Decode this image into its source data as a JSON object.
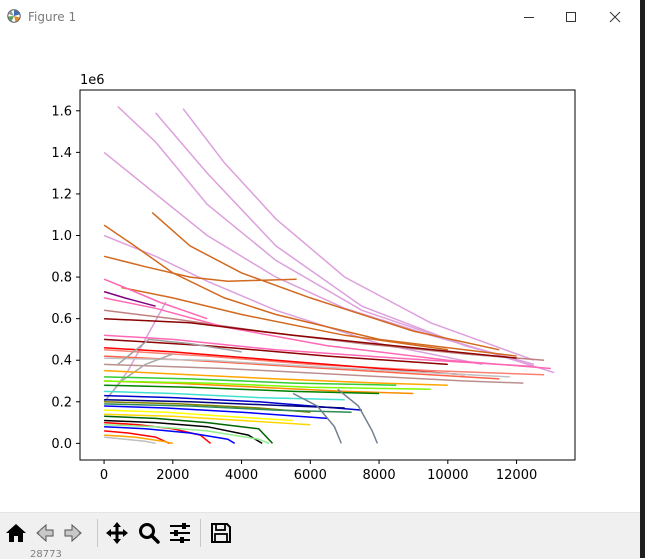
{
  "window": {
    "title": "Figure 1",
    "icons": {
      "app": "matplotlib-icon",
      "minimize": "minimize-icon",
      "maximize": "maximize-icon",
      "close": "close-icon"
    }
  },
  "toolbar": {
    "buttons": [
      {
        "name": "home",
        "icon": "home-icon"
      },
      {
        "name": "back",
        "icon": "back-arrow-icon"
      },
      {
        "name": "forward",
        "icon": "forward-arrow-icon"
      },
      {
        "name": "pan",
        "icon": "move-icon"
      },
      {
        "name": "zoom",
        "icon": "zoom-icon"
      },
      {
        "name": "configure",
        "icon": "sliders-icon"
      },
      {
        "name": "save",
        "icon": "save-icon"
      }
    ],
    "status_text": "28773"
  },
  "chart_data": {
    "type": "line",
    "title": "",
    "xlabel": "",
    "ylabel": "",
    "offset_text": "1e6",
    "xlim": [
      -700,
      13700
    ],
    "ylim": [
      -80000,
      1700000
    ],
    "xticks": [
      0,
      2000,
      4000,
      6000,
      8000,
      10000,
      12000
    ],
    "xtick_labels": [
      "0",
      "2000",
      "4000",
      "6000",
      "8000",
      "10000",
      "12000"
    ],
    "yticks": [
      0,
      200000,
      400000,
      600000,
      800000,
      1000000,
      1200000,
      1400000,
      1600000
    ],
    "ytick_labels": [
      "0.0",
      "0.2",
      "0.4",
      "0.6",
      "0.8",
      "1.0",
      "1.2",
      "1.4",
      "1.6"
    ],
    "grid": false,
    "legend": "none",
    "series": [
      {
        "color": "#dda0dd",
        "values": [
          [
            0,
            1400000
          ],
          [
            1500,
            1200000
          ],
          [
            3000,
            1000000
          ],
          [
            5000,
            800000
          ],
          [
            7000,
            650000
          ],
          [
            9500,
            520000
          ],
          [
            12500,
            380000
          ]
        ]
      },
      {
        "color": "#dda0dd",
        "values": [
          [
            400,
            1620000
          ],
          [
            1500,
            1450000
          ],
          [
            3000,
            1150000
          ],
          [
            5000,
            880000
          ],
          [
            7500,
            640000
          ],
          [
            10000,
            500000
          ],
          [
            13100,
            340000
          ]
        ]
      },
      {
        "color": "#dda0dd",
        "values": [
          [
            2300,
            1610000
          ],
          [
            3500,
            1350000
          ],
          [
            5000,
            1080000
          ],
          [
            7000,
            800000
          ],
          [
            9500,
            580000
          ],
          [
            12500,
            400000
          ]
        ]
      },
      {
        "color": "#dda0dd",
        "values": [
          [
            1500,
            1590000
          ],
          [
            3000,
            1300000
          ],
          [
            5000,
            950000
          ],
          [
            7500,
            660000
          ],
          [
            10500,
            470000
          ],
          [
            12500,
            380000
          ]
        ]
      },
      {
        "color": "#dda0dd",
        "values": [
          [
            0,
            1000000
          ],
          [
            1500,
            900000
          ],
          [
            3000,
            780000
          ],
          [
            5000,
            640000
          ],
          [
            8000,
            480000
          ],
          [
            11000,
            380000
          ]
        ]
      },
      {
        "color": "#dda0dd",
        "values": [
          [
            0,
            200000
          ],
          [
            300,
            260000
          ],
          [
            700,
            350000
          ],
          [
            1200,
            500000
          ],
          [
            1800,
            680000
          ]
        ]
      },
      {
        "color": "#d2691e",
        "values": [
          [
            0,
            1050000
          ],
          [
            800,
            960000
          ],
          [
            2000,
            820000
          ],
          [
            3500,
            700000
          ],
          [
            5000,
            620000
          ],
          [
            8000,
            500000
          ],
          [
            12000,
            420000
          ]
        ]
      },
      {
        "color": "#d2691e",
        "values": [
          [
            1400,
            1110000
          ],
          [
            2500,
            950000
          ],
          [
            4000,
            820000
          ],
          [
            6000,
            700000
          ],
          [
            9000,
            540000
          ],
          [
            11500,
            450000
          ]
        ]
      },
      {
        "color": "#d2691e",
        "values": [
          [
            0,
            900000
          ],
          [
            1200,
            850000
          ],
          [
            2500,
            800000
          ],
          [
            3600,
            780000
          ],
          [
            5600,
            790000
          ]
        ]
      },
      {
        "color": "#d2691e",
        "values": [
          [
            500,
            750000
          ],
          [
            2000,
            700000
          ],
          [
            4000,
            620000
          ],
          [
            7000,
            520000
          ],
          [
            10000,
            450000
          ]
        ]
      },
      {
        "color": "#c08080",
        "values": [
          [
            0,
            640000
          ],
          [
            2000,
            600000
          ],
          [
            4500,
            540000
          ],
          [
            7500,
            480000
          ],
          [
            10500,
            430000
          ],
          [
            12800,
            400000
          ]
        ]
      },
      {
        "color": "#ff69b4",
        "values": [
          [
            0,
            700000
          ],
          [
            1500,
            650000
          ],
          [
            3500,
            560000
          ],
          [
            6500,
            470000
          ],
          [
            10000,
            400000
          ],
          [
            13000,
            360000
          ]
        ]
      },
      {
        "color": "#ff69b4",
        "values": [
          [
            0,
            520000
          ],
          [
            2000,
            500000
          ],
          [
            5000,
            450000
          ],
          [
            8500,
            410000
          ],
          [
            12500,
            370000
          ]
        ]
      },
      {
        "color": "#ff69b4",
        "values": [
          [
            0,
            790000
          ],
          [
            600,
            750000
          ],
          [
            1600,
            680000
          ],
          [
            3000,
            600000
          ]
        ]
      },
      {
        "color": "#8b0000",
        "values": [
          [
            0,
            600000
          ],
          [
            2500,
            580000
          ],
          [
            5500,
            520000
          ],
          [
            9000,
            460000
          ],
          [
            12000,
            410000
          ]
        ]
      },
      {
        "color": "#8b0000",
        "values": [
          [
            0,
            500000
          ],
          [
            3000,
            470000
          ],
          [
            6500,
            420000
          ],
          [
            10000,
            380000
          ]
        ]
      },
      {
        "color": "#800080",
        "values": [
          [
            0,
            730000
          ],
          [
            600,
            700000
          ],
          [
            1500,
            660000
          ]
        ]
      },
      {
        "color": "#fa8072",
        "values": [
          [
            0,
            450000
          ],
          [
            3000,
            420000
          ],
          [
            6000,
            380000
          ],
          [
            9500,
            350000
          ],
          [
            12800,
            330000
          ]
        ]
      },
      {
        "color": "#ff6347",
        "values": [
          [
            0,
            420000
          ],
          [
            2500,
            400000
          ],
          [
            5500,
            370000
          ],
          [
            8500,
            340000
          ],
          [
            11500,
            310000
          ]
        ]
      },
      {
        "color": "#ff0000",
        "values": [
          [
            0,
            460000
          ],
          [
            2000,
            440000
          ],
          [
            5000,
            400000
          ],
          [
            8000,
            360000
          ],
          [
            10500,
            330000
          ]
        ]
      },
      {
        "color": "#bc8f8f",
        "values": [
          [
            0,
            380000
          ],
          [
            3500,
            360000
          ],
          [
            7000,
            330000
          ],
          [
            10500,
            300000
          ],
          [
            12200,
            290000
          ]
        ]
      },
      {
        "color": "#c0c0c0",
        "values": [
          [
            0,
            410000
          ],
          [
            3000,
            400000
          ],
          [
            6000,
            370000
          ],
          [
            9500,
            340000
          ],
          [
            11800,
            320000
          ]
        ]
      },
      {
        "color": "#a9a9a9",
        "values": [
          [
            0,
            200000
          ],
          [
            500,
            300000
          ],
          [
            1200,
            380000
          ],
          [
            2000,
            430000
          ]
        ]
      },
      {
        "color": "#a0a0a0",
        "values": [
          [
            400,
            380000
          ],
          [
            1300,
            500000
          ],
          [
            2500,
            480000
          ],
          [
            4000,
            440000
          ]
        ]
      },
      {
        "color": "#ffa500",
        "values": [
          [
            0,
            350000
          ],
          [
            2500,
            330000
          ],
          [
            5000,
            310000
          ],
          [
            8000,
            290000
          ],
          [
            10000,
            280000
          ]
        ]
      },
      {
        "color": "#ff8c00",
        "values": [
          [
            0,
            300000
          ],
          [
            2000,
            290000
          ],
          [
            4500,
            270000
          ],
          [
            7000,
            250000
          ],
          [
            9000,
            240000
          ]
        ]
      },
      {
        "color": "#32cd32",
        "values": [
          [
            0,
            320000
          ],
          [
            2500,
            310000
          ],
          [
            5500,
            290000
          ],
          [
            8500,
            280000
          ]
        ]
      },
      {
        "color": "#7cfc00",
        "values": [
          [
            0,
            300000
          ],
          [
            3000,
            290000
          ],
          [
            6000,
            270000
          ],
          [
            9500,
            260000
          ]
        ]
      },
      {
        "color": "#008000",
        "values": [
          [
            0,
            280000
          ],
          [
            2500,
            270000
          ],
          [
            5500,
            250000
          ],
          [
            8000,
            240000
          ]
        ]
      },
      {
        "color": "#40e0d0",
        "values": [
          [
            0,
            250000
          ],
          [
            2000,
            240000
          ],
          [
            4500,
            220000
          ],
          [
            7000,
            210000
          ]
        ]
      },
      {
        "color": "#0000cd",
        "values": [
          [
            0,
            230000
          ],
          [
            2000,
            220000
          ],
          [
            4500,
            200000
          ],
          [
            7500,
            160000
          ]
        ]
      },
      {
        "color": "#0000ff",
        "values": [
          [
            0,
            180000
          ],
          [
            1800,
            170000
          ],
          [
            4000,
            150000
          ],
          [
            6500,
            120000
          ]
        ]
      },
      {
        "color": "#000080",
        "values": [
          [
            0,
            210000
          ],
          [
            2500,
            200000
          ],
          [
            5500,
            180000
          ],
          [
            7000,
            170000
          ]
        ]
      },
      {
        "color": "#808000",
        "values": [
          [
            0,
            200000
          ],
          [
            2200,
            190000
          ],
          [
            4500,
            170000
          ],
          [
            6000,
            150000
          ]
        ]
      },
      {
        "color": "#ffff00",
        "values": [
          [
            0,
            160000
          ],
          [
            1800,
            150000
          ],
          [
            3500,
            130000
          ],
          [
            5500,
            110000
          ]
        ]
      },
      {
        "color": "#ffd700",
        "values": [
          [
            0,
            140000
          ],
          [
            2000,
            130000
          ],
          [
            4000,
            110000
          ],
          [
            6000,
            90000
          ]
        ]
      },
      {
        "color": "#2e8b57",
        "values": [
          [
            0,
            190000
          ],
          [
            2500,
            180000
          ],
          [
            5000,
            160000
          ],
          [
            7200,
            150000
          ]
        ]
      },
      {
        "color": "#006400",
        "values": [
          [
            0,
            130000
          ],
          [
            1500,
            120000
          ],
          [
            3000,
            100000
          ],
          [
            4500,
            70000
          ],
          [
            4900,
            0
          ]
        ]
      },
      {
        "color": "#ff0000",
        "values": [
          [
            0,
            100000
          ],
          [
            1000,
            90000
          ],
          [
            2000,
            70000
          ],
          [
            2800,
            40000
          ],
          [
            3100,
            0
          ]
        ]
      },
      {
        "color": "#ff0000",
        "values": [
          [
            0,
            60000
          ],
          [
            700,
            50000
          ],
          [
            1500,
            30000
          ],
          [
            1900,
            0
          ]
        ]
      },
      {
        "color": "#0000ff",
        "values": [
          [
            0,
            80000
          ],
          [
            1200,
            70000
          ],
          [
            2500,
            50000
          ],
          [
            3600,
            20000
          ],
          [
            3800,
            0
          ]
        ]
      },
      {
        "color": "#000000",
        "values": [
          [
            0,
            110000
          ],
          [
            1500,
            100000
          ],
          [
            3000,
            80000
          ],
          [
            4200,
            40000
          ],
          [
            4600,
            0
          ]
        ]
      },
      {
        "color": "#90ee90",
        "values": [
          [
            0,
            90000
          ],
          [
            1500,
            80000
          ],
          [
            3000,
            60000
          ],
          [
            4500,
            20000
          ],
          [
            4800,
            0
          ]
        ]
      },
      {
        "color": "#708090",
        "values": [
          [
            5500,
            240000
          ],
          [
            6200,
            180000
          ],
          [
            6700,
            80000
          ],
          [
            6900,
            0
          ]
        ]
      },
      {
        "color": "#708090",
        "values": [
          [
            6800,
            260000
          ],
          [
            7400,
            180000
          ],
          [
            7800,
            60000
          ],
          [
            7950,
            0
          ]
        ]
      },
      {
        "color": "#c0c0c0",
        "values": [
          [
            0,
            30000
          ],
          [
            600,
            20000
          ],
          [
            1200,
            10000
          ],
          [
            1500,
            0
          ]
        ]
      },
      {
        "color": "#ffa500",
        "values": [
          [
            0,
            40000
          ],
          [
            900,
            30000
          ],
          [
            1700,
            10000
          ],
          [
            2000,
            0
          ]
        ]
      }
    ]
  }
}
